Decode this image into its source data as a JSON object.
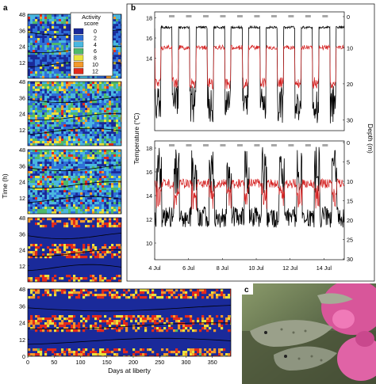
{
  "panel_labels": {
    "a": "a",
    "b": "b",
    "c": "c"
  },
  "panel_a": {
    "ylabel": "Time (h)",
    "xlabel": "Days at liberty",
    "y_ticks": [
      "48",
      "36",
      "24",
      "12",
      "0"
    ],
    "x_ticks": [
      "0",
      "50",
      "100",
      "150",
      "200",
      "250",
      "300",
      "350"
    ],
    "legend": {
      "title_line1": "Activity",
      "title_line2": "score",
      "levels": [
        {
          "label": "0",
          "color": "#1a2a9a"
        },
        {
          "label": "2",
          "color": "#2f6fd8"
        },
        {
          "label": "4",
          "color": "#49b7e0"
        },
        {
          "label": "6",
          "color": "#4fb96a"
        },
        {
          "label": "8",
          "color": "#e9e23c"
        },
        {
          "label": "10",
          "color": "#f39a2c"
        },
        {
          "label": "12",
          "color": "#e32a1c"
        }
      ]
    }
  },
  "panel_b": {
    "ylabel_left": "Temperature (°C)",
    "ylabel_right": "Depth (m)",
    "x_ticks": [
      "4 Jul",
      "6 Jul",
      "8 Jul",
      "10 Jul",
      "12 Jul",
      "14 Jul"
    ],
    "top_left_ticks": [
      "18",
      "16",
      "14"
    ],
    "top_right_ticks": [
      "0",
      "10",
      "20",
      "30"
    ],
    "bottom_left_ticks": [
      "18",
      "16",
      "14",
      "12",
      "10"
    ],
    "bottom_right_ticks": [
      "0",
      "5",
      "10",
      "15",
      "20",
      "25",
      "30"
    ],
    "colors": {
      "temperature": "#d42020",
      "depth": "#000000",
      "night_bar": "#a8a8a8"
    }
  },
  "panel_c": {
    "description_color": "#6b7a5a"
  }
}
